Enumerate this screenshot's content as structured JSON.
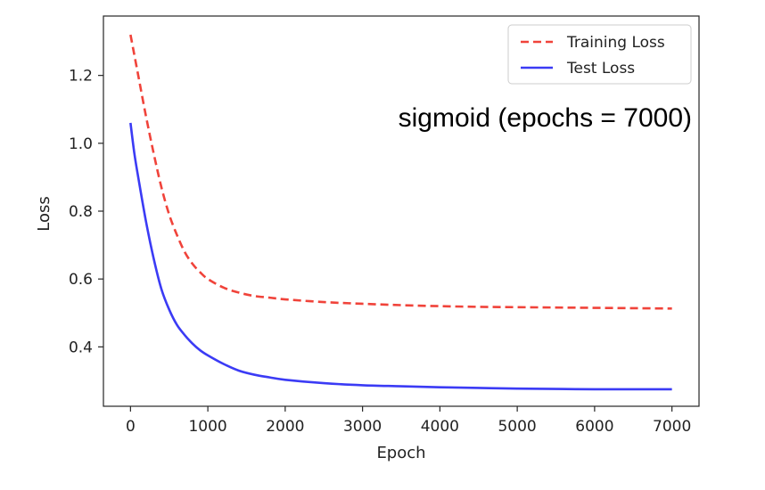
{
  "chart_data": {
    "type": "line",
    "title": "",
    "xlabel": "Epoch",
    "ylabel": "Loss",
    "xlim": [
      -350,
      7350
    ],
    "ylim": [
      0.225,
      1.375
    ],
    "xticks": [
      "0",
      "1000",
      "2000",
      "3000",
      "4000",
      "5000",
      "6000",
      "7000"
    ],
    "yticks": [
      "0.4",
      "0.6",
      "0.8",
      "1.0",
      "1.2"
    ],
    "grid": false,
    "legend_position": "top-right",
    "annotation": "sigmoid (epochs = 7000)",
    "series": [
      {
        "name": "Training Loss",
        "color": "#f0433a",
        "style": "dashed",
        "x": [
          0,
          100,
          200,
          300,
          400,
          500,
          600,
          700,
          800,
          900,
          1000,
          1200,
          1400,
          1600,
          1800,
          2000,
          2500,
          3000,
          3500,
          4000,
          4500,
          5000,
          5500,
          6000,
          6500,
          7000
        ],
        "y": [
          1.32,
          1.2,
          1.08,
          0.97,
          0.87,
          0.79,
          0.73,
          0.68,
          0.645,
          0.62,
          0.6,
          0.575,
          0.56,
          0.55,
          0.545,
          0.54,
          0.532,
          0.527,
          0.523,
          0.52,
          0.518,
          0.517,
          0.516,
          0.515,
          0.514,
          0.513
        ]
      },
      {
        "name": "Test Loss",
        "color": "#3b3bf5",
        "style": "solid",
        "x": [
          0,
          50,
          100,
          200,
          300,
          400,
          500,
          600,
          700,
          800,
          900,
          1000,
          1200,
          1400,
          1600,
          1800,
          2000,
          2500,
          3000,
          3500,
          4000,
          4500,
          5000,
          5500,
          6000,
          6500,
          7000
        ],
        "y": [
          1.06,
          0.97,
          0.9,
          0.77,
          0.66,
          0.57,
          0.51,
          0.465,
          0.435,
          0.41,
          0.39,
          0.375,
          0.35,
          0.33,
          0.318,
          0.31,
          0.303,
          0.293,
          0.287,
          0.284,
          0.281,
          0.279,
          0.277,
          0.276,
          0.275,
          0.275,
          0.275
        ]
      }
    ]
  }
}
